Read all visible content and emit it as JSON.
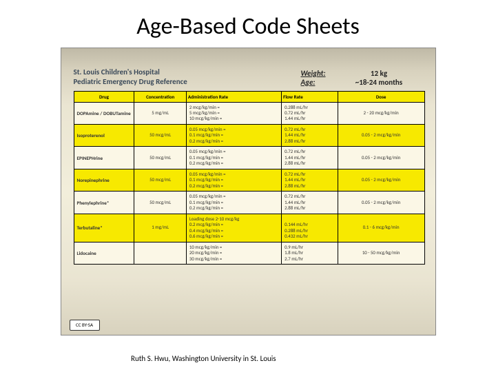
{
  "slide": {
    "title": "Age-Based Code Sheets",
    "attribution": "Ruth S. Hwu, Washington University in St. Louis",
    "cc_label": "CC BY-SA"
  },
  "sheet": {
    "hospital_line1": "St. Louis Children's Hospital",
    "hospital_line2": "Pediatric Emergency Drug Reference",
    "weight_label": "Weight:",
    "weight_value": "12 kg",
    "age_label": "Age:",
    "age_value": "~18-24 months"
  },
  "table": {
    "headers": [
      "Drug",
      "Concentration",
      "Administration Rate",
      "Flow Rate",
      "Dose"
    ],
    "rows": [
      {
        "hl": false,
        "drug": "DOPAmine / DOBUTamine",
        "conc": "5 mg/mL",
        "rate": "2 mcg/kg/min =\n5 mcg/kg/min =\n10 mcg/kg/min =",
        "flow": "0.288 mL/hr\n0.72 mL/hr\n1.44 mL/hr",
        "dose": "2 - 20 mcg/kg/min"
      },
      {
        "hl": true,
        "drug": "Isoproterenol",
        "conc": "50 mcg/mL",
        "rate": "0.05 mcg/kg/min =\n0.1 mcg/kg/min =\n0.2 mcg/kg/min =",
        "flow": "0.72 mL/hr\n1.44 mL/hr\n2.88 mL/hr",
        "dose": "0.05 - 2 mcg/kg/min"
      },
      {
        "hl": false,
        "drug": "EPINEPHrine",
        "conc": "50 mcg/mL",
        "rate": "0.05 mcg/kg/min =\n0.1 mcg/kg/min =\n0.2 mcg/kg/min =",
        "flow": "0.72 mL/hr\n1.44 mL/hr\n2.88 mL/hr",
        "dose": "0.05 - 2 mcg/kg/min"
      },
      {
        "hl": true,
        "drug": "Norepinephrine",
        "conc": "50 mcg/mL",
        "rate": "0.05 mcg/kg/min =\n0.1 mcg/kg/min =\n0.2 mcg/kg/min =",
        "flow": "0.72 mL/hr\n1.44 mL/hr\n2.88 mL/hr",
        "dose": "0.05 - 2 mcg/kg/min"
      },
      {
        "hl": false,
        "drug": "Phenylephrine*",
        "conc": "50 mcg/mL",
        "rate": "0.05 mcg/kg/min =\n0.1 mcg/kg/min =\n0.2 mcg/kg/min =",
        "flow": "0.72 mL/hr\n1.44 mL/hr\n2.88 mL/hr",
        "dose": "0.05 - 2 mcg/kg/min"
      },
      {
        "hl": true,
        "drug": "Terbutaline*",
        "conc": "1 mg/mL",
        "rate": "Loading dose 2-10 mcg/kg\n0.2 mcg/kg/min =\n0.4 mcg/kg/min =\n0.6 mcg/kg/min =",
        "flow": "\n0.144 mL/hr\n0.288 mL/hr\n0.432 mL/hr",
        "dose": "0.1 - 6 mcg/kg/min"
      },
      {
        "hl": false,
        "drug": "Lidocaine",
        "conc": "",
        "rate": "10 mcg/kg/min =\n20 mcg/kg/min =\n30 mcg/kg/min =",
        "flow": "0.9 mL/hr\n1.8 mL/hr\n2.7 mL/hr",
        "dose": "10 - 50 mcg/kg/min"
      }
    ]
  },
  "style": {
    "highlight_color": "#f7e900",
    "sheet_bg": "#f2eedb",
    "border_color": "#000000",
    "title_color": "#000000",
    "header_text_color": "#3b4a5a"
  }
}
